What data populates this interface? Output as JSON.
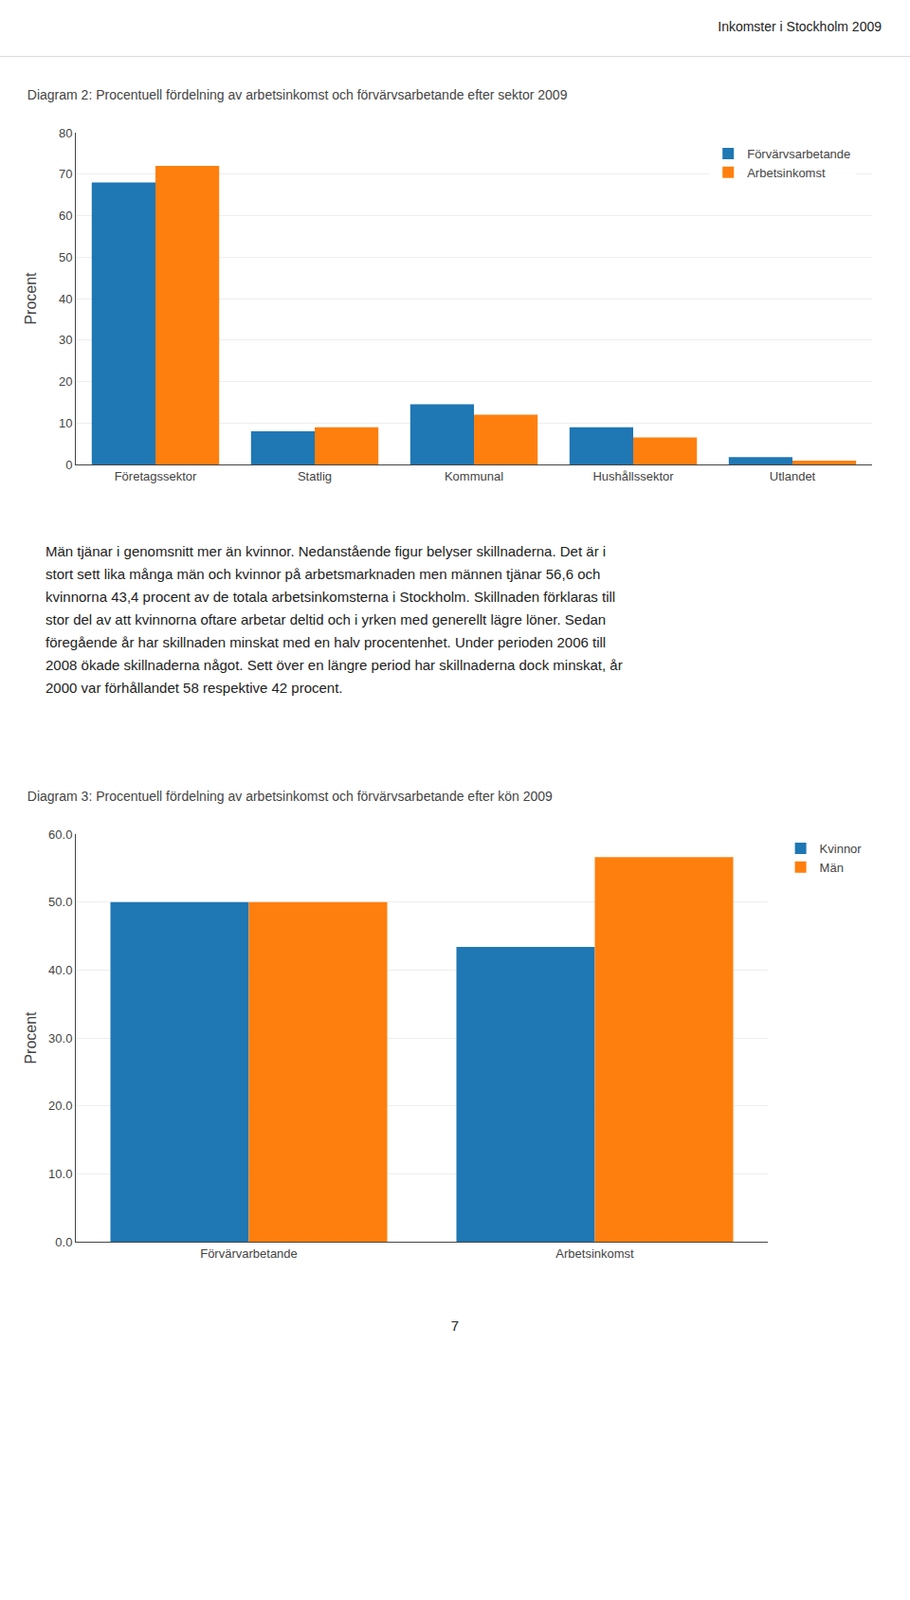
{
  "title": "Inkomster i Stockholm 2009",
  "paragraph": [
    "Män tjänar i genomsnitt mer än kvinnor. Nedanstående figur belyser skillnaderna. Det är i",
    "stort sett lika många män och kvinnor på arbetsmarknaden men männen tjänar 56,6 och",
    "kvinnorna 43,4 procent av de totala arbetsinkomsterna i Stockholm. Skillnaden förklaras till",
    "stor del av att kvinnorna oftare arbetar deltid och i yrken med generellt lägre löner. Sedan",
    "föregående år har skillnaden minskat med en halv procentenhet. Under perioden 2006 till",
    "2008 ökade skillnaderna något. Sett över en längre period har skillnaderna dock minskat, år",
    "2000 var förhållandet 58 respektive 42 procent."
  ],
  "page_number": "7",
  "chart_data": [
    {
      "type": "bar",
      "title": "Diagram 2: Procentuell fördelning av arbetsinkomst och förvärvsarbetande efter sektor 2009",
      "categories": [
        "Företagssektor",
        "Statlig",
        "Kommunal",
        "Hushållssektor",
        "Utlandet"
      ],
      "series": [
        {
          "name": "Förvärvsarbetande",
          "values": [
            68.0,
            8.0,
            14.5,
            9.0,
            1.8
          ]
        },
        {
          "name": "Arbetsinkomst",
          "values": [
            72.0,
            9.0,
            12.0,
            6.5,
            0.9
          ]
        }
      ],
      "ylabel": "Procent",
      "ylim": [
        0,
        80
      ],
      "yticks": [
        0,
        10,
        20,
        30,
        40,
        50,
        60,
        70,
        80
      ],
      "grid": true,
      "legend": "upper right"
    },
    {
      "type": "bar",
      "title": "Diagram 3: Procentuell fördelning av arbetsinkomst och förvärvsarbetande efter kön 2009",
      "categories": [
        "Förvärvarbetande",
        "Arbetsinkomst"
      ],
      "series": [
        {
          "name": "Kvinnor",
          "values": [
            50.0,
            43.4
          ]
        },
        {
          "name": "Män",
          "values": [
            50.0,
            56.6
          ]
        }
      ],
      "ylabel": "Procent",
      "ylim": [
        0,
        60
      ],
      "yticks": [
        {
          "value": 0,
          "label": "0.0"
        },
        {
          "value": 10,
          "label": "10.0"
        },
        {
          "value": 20,
          "label": "20.0"
        },
        {
          "value": 30,
          "label": "30.0"
        },
        {
          "value": 40,
          "label": "40.0"
        },
        {
          "value": 50,
          "label": "50.0"
        },
        {
          "value": 60,
          "label": "60.0"
        }
      ],
      "grid": true,
      "legend": "right"
    }
  ]
}
